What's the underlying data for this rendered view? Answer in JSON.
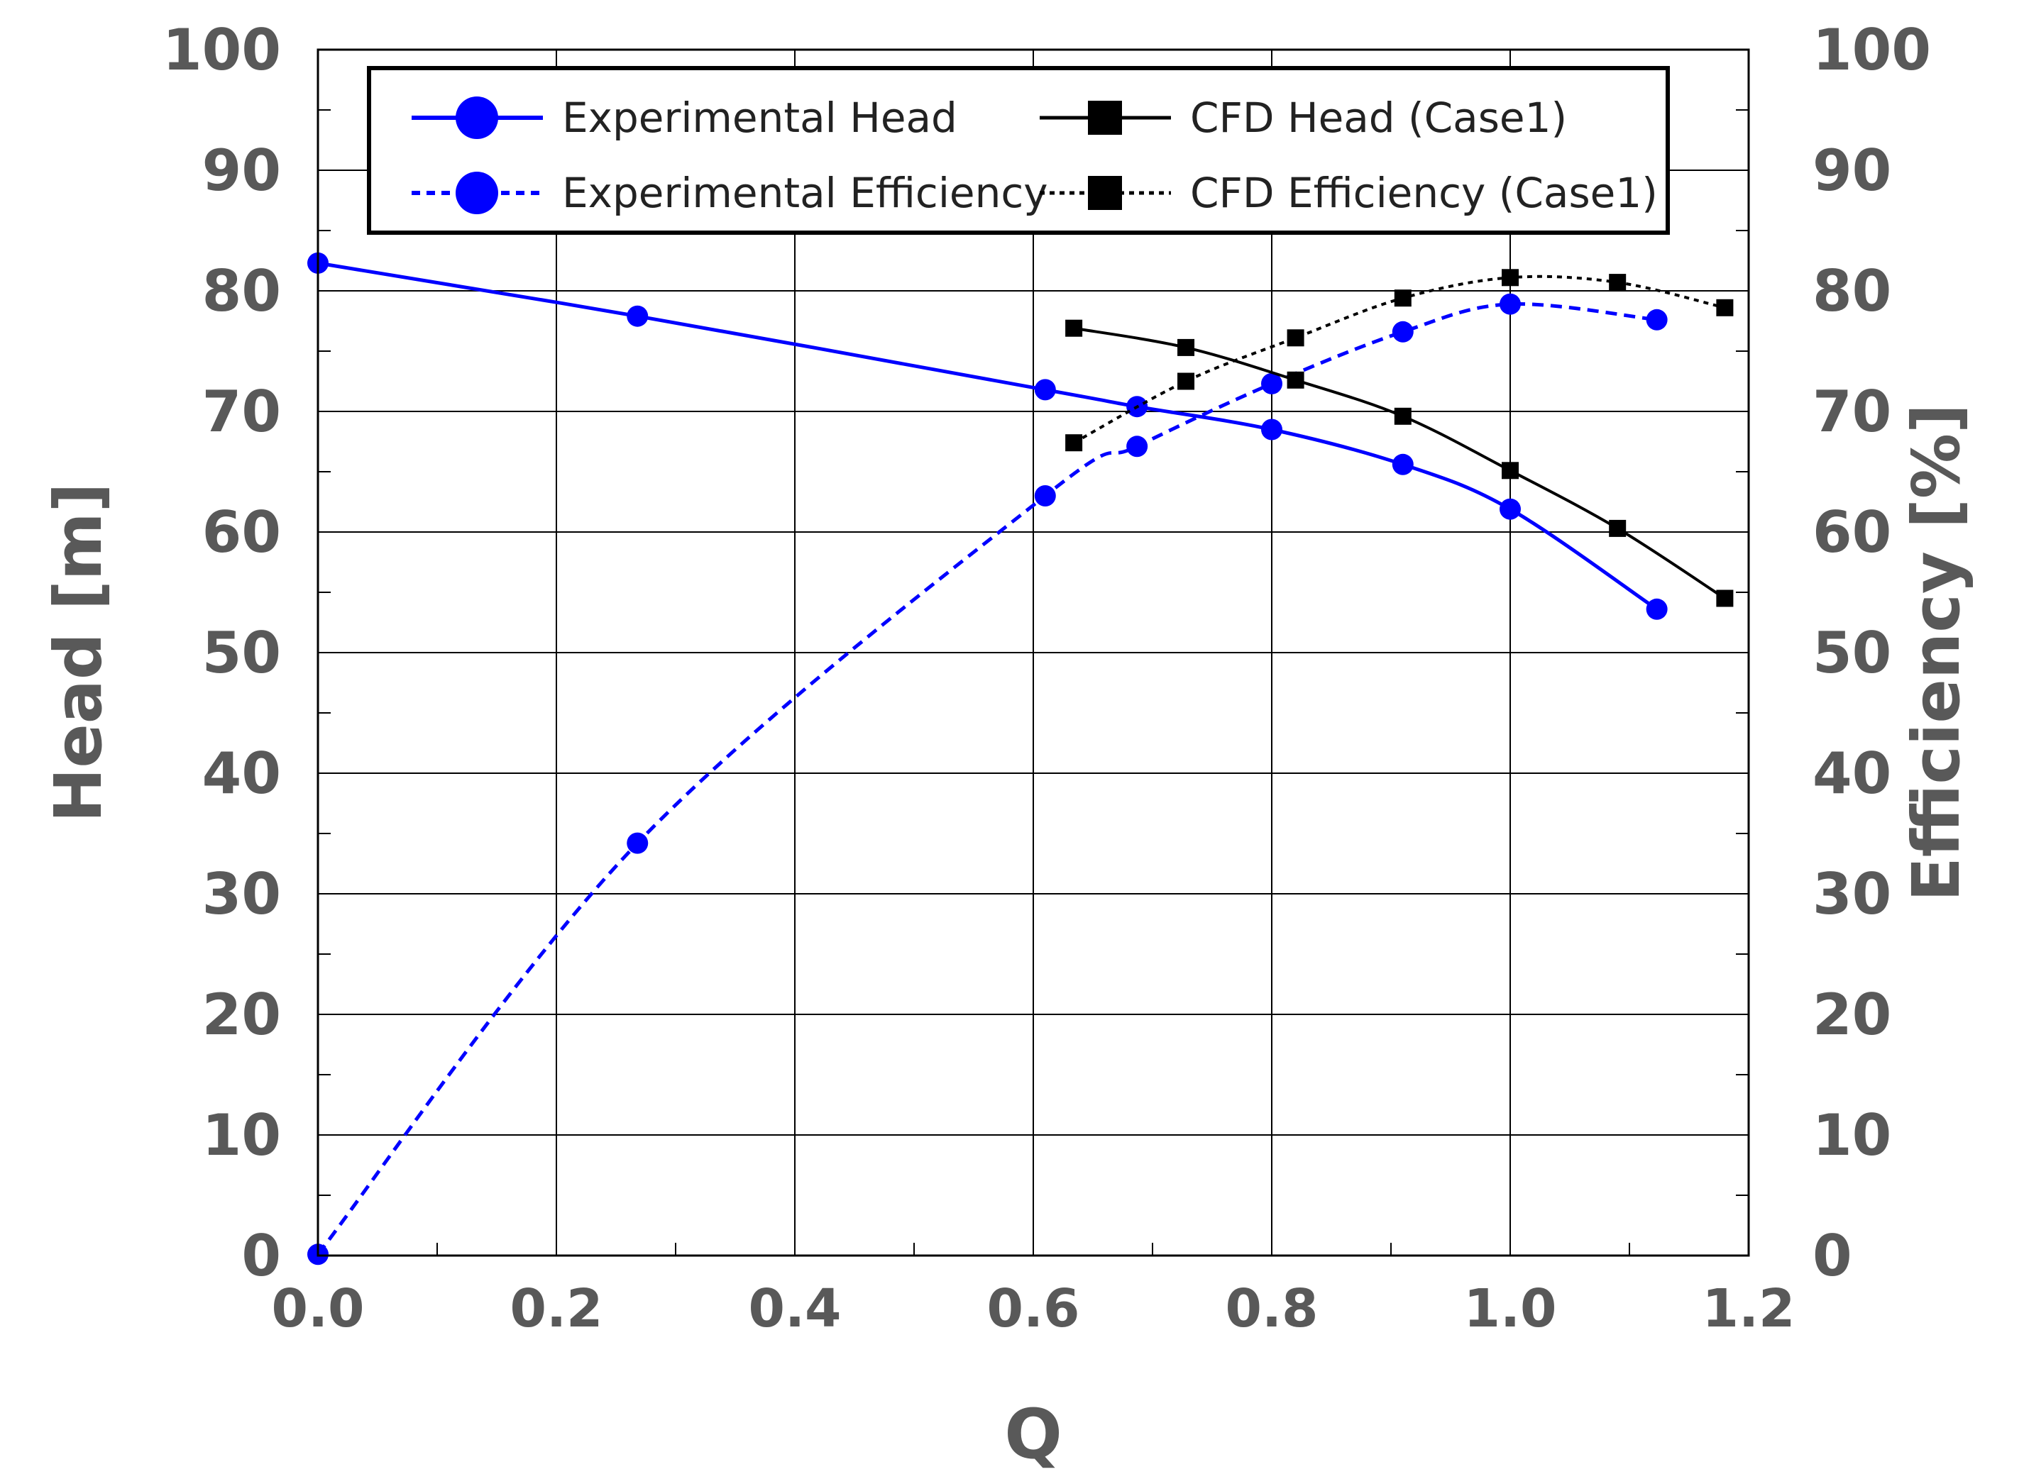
{
  "chart_data": {
    "type": "line",
    "x_axis": {
      "label": "Q",
      "min": 0.0,
      "max": 1.2,
      "ticks": [
        "0.0",
        "0.2",
        "0.4",
        "0.6",
        "0.8",
        "1.0",
        "1.2"
      ]
    },
    "y_axis_left": {
      "label": "Head [m]",
      "min": 0,
      "max": 100,
      "ticks": [
        "0",
        "10",
        "20",
        "30",
        "40",
        "50",
        "60",
        "70",
        "80",
        "90",
        "100"
      ]
    },
    "y_axis_right": {
      "label": "Efficiency [%]",
      "min": 0,
      "max": 100,
      "ticks": [
        "0",
        "10",
        "20",
        "30",
        "40",
        "50",
        "60",
        "70",
        "80",
        "90",
        "100"
      ]
    },
    "grid": true,
    "legend_position": "top",
    "series": [
      {
        "name": "Experimental Head",
        "axis": "left",
        "color": "#0000ff",
        "style": "solid",
        "marker": "circle",
        "points": [
          [
            0.0,
            82.3
          ],
          [
            0.268,
            77.9
          ],
          [
            0.61,
            71.8
          ],
          [
            0.687,
            70.4
          ],
          [
            0.8,
            68.5
          ],
          [
            0.91,
            65.6
          ],
          [
            1.0,
            61.9
          ],
          [
            1.123,
            53.6
          ]
        ]
      },
      {
        "name": "Experimental Efficiency",
        "axis": "right",
        "color": "#0000ff",
        "style": "dashed",
        "marker": "circle",
        "points": [
          [
            0.0,
            0.1
          ],
          [
            0.268,
            34.2
          ],
          [
            0.61,
            63.0
          ],
          [
            0.687,
            67.1
          ],
          [
            0.8,
            72.3
          ],
          [
            0.91,
            76.6
          ],
          [
            1.0,
            78.9
          ],
          [
            1.123,
            77.6
          ]
        ]
      },
      {
        "name": "CFD Head (Case1)",
        "axis": "left",
        "color": "#000000",
        "style": "solid",
        "marker": "square",
        "points": [
          [
            0.634,
            76.9
          ],
          [
            0.728,
            75.3
          ],
          [
            0.82,
            72.6
          ],
          [
            0.91,
            69.6
          ],
          [
            1.0,
            65.1
          ],
          [
            1.09,
            60.3
          ],
          [
            1.18,
            54.5
          ]
        ]
      },
      {
        "name": "CFD Efficiency (Case1)",
        "axis": "right",
        "color": "#000000",
        "style": "dotted",
        "marker": "square",
        "points": [
          [
            0.634,
            67.4
          ],
          [
            0.728,
            72.5
          ],
          [
            0.82,
            76.1
          ],
          [
            0.91,
            79.4
          ],
          [
            1.0,
            81.1
          ],
          [
            1.09,
            80.7
          ],
          [
            1.18,
            78.6
          ]
        ]
      }
    ]
  }
}
